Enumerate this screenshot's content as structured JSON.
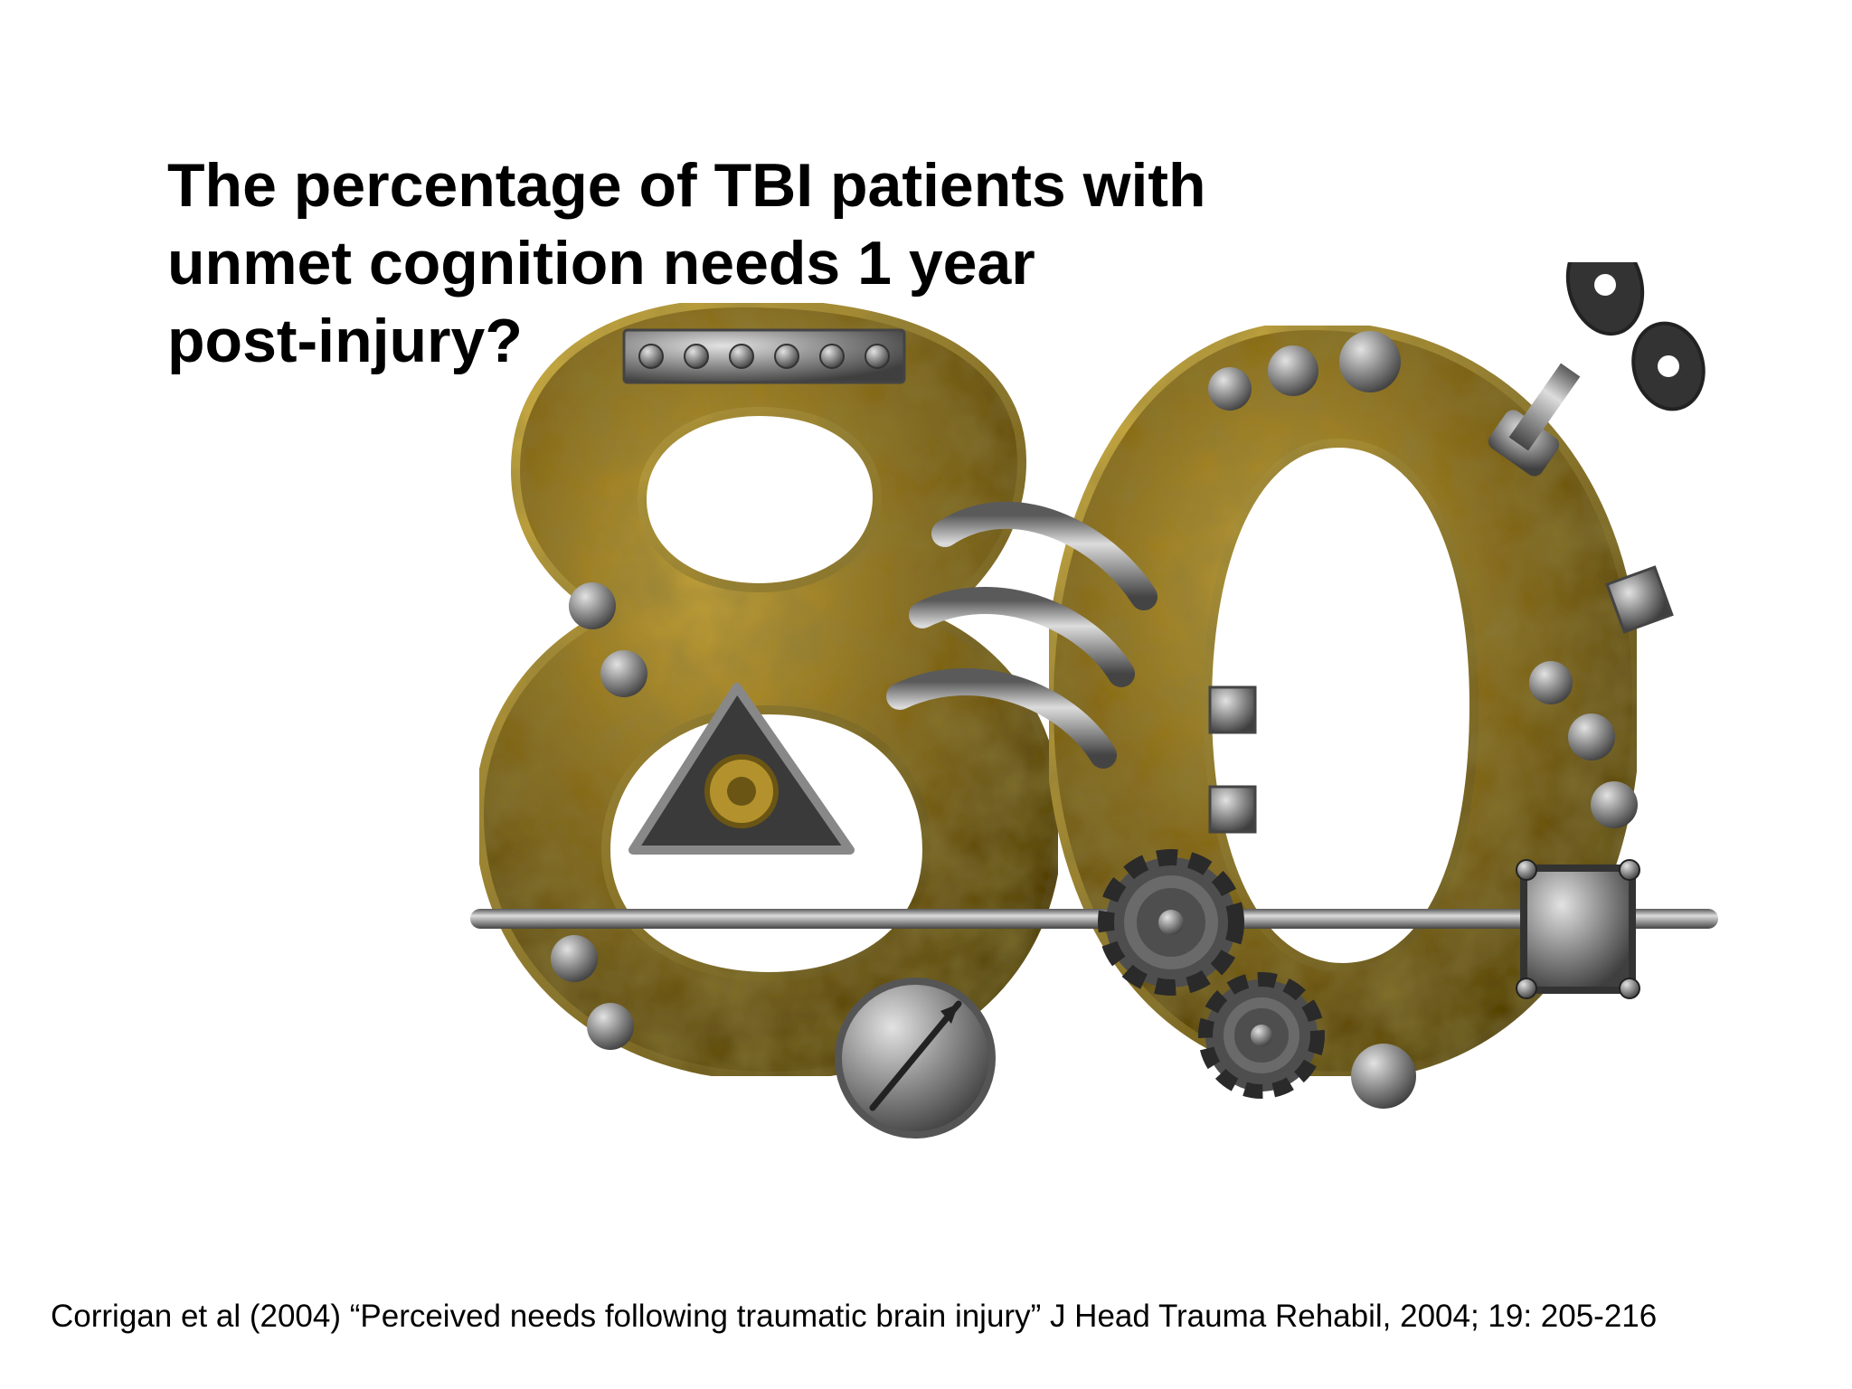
{
  "slide": {
    "title_lines": [
      "The percentage of TBI patients with",
      "unmet cognition needs 1 year",
      "post-injury?"
    ],
    "figure": {
      "number_text": "80",
      "icon": "steampunk-number-80-icon",
      "colors": {
        "brass": "#8a6d1c",
        "brass_dark": "#4a3a0c",
        "brass_light": "#c6a43c",
        "steel": "#8f8f8f",
        "steel_dark": "#4d4d4d"
      }
    },
    "citation": "Corrigan et al (2004) “Perceived needs following traumatic brain injury” J Head Trauma Rehabil, 2004; 19: 205-216"
  }
}
